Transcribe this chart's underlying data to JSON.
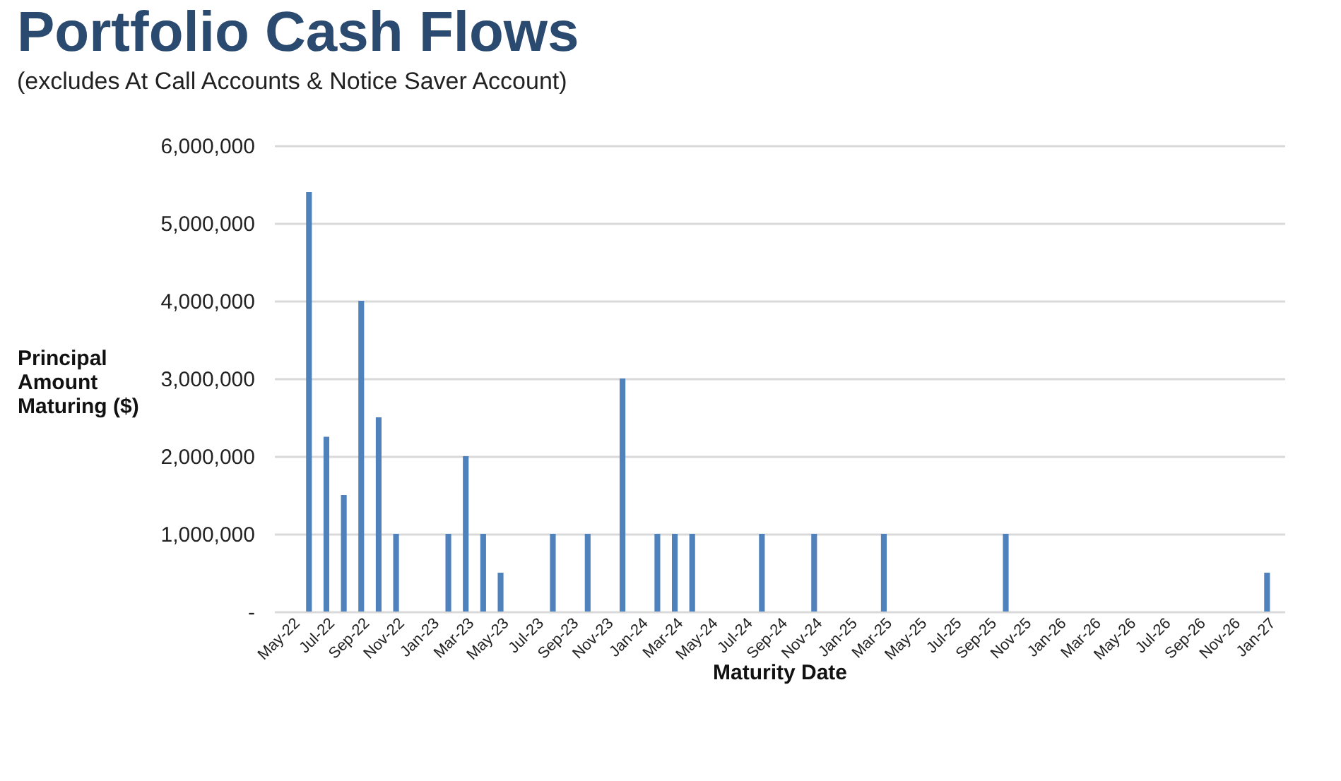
{
  "chart_data": {
    "type": "bar",
    "title": "Portfolio Cash Flows",
    "subtitle": "(excludes At Call Accounts & Notice Saver Account)",
    "xlabel": "Maturity Date",
    "ylabel": "Principal Amount Maturing ($)",
    "categories": [
      "May-22",
      null,
      "Jul-22",
      null,
      "Sep-22",
      null,
      "Nov-22",
      null,
      "Jan-23",
      null,
      "Mar-23",
      null,
      "May-23",
      null,
      "Jul-23",
      null,
      "Sep-23",
      null,
      "Nov-23",
      null,
      "Jan-24",
      null,
      "Mar-24",
      null,
      "May-24",
      null,
      "Jul-24",
      null,
      "Sep-24",
      null,
      "Nov-24",
      null,
      "Jan-25",
      null,
      "Mar-25",
      null,
      "May-25",
      null,
      "Jul-25",
      null,
      "Sep-25",
      null,
      "Nov-25",
      null,
      "Jan-26",
      null,
      "Mar-26",
      null,
      "May-26",
      null,
      "Jul-26",
      null,
      "Sep-26",
      null,
      "Nov-26",
      null,
      "Jan-27"
    ],
    "series": [
      {
        "color": "#4f81bd",
        "values": [
          null,
          5400000,
          2250000,
          1500000,
          4000000,
          2500000,
          1000000,
          null,
          null,
          1000000,
          2000000,
          1000000,
          500000,
          null,
          null,
          1000000,
          null,
          1000000,
          null,
          3000000,
          null,
          1000000,
          1000000,
          1000000,
          null,
          null,
          null,
          1000000,
          null,
          null,
          1000000,
          null,
          null,
          null,
          1000000,
          null,
          null,
          null,
          null,
          null,
          null,
          1000000,
          null,
          null,
          null,
          null,
          null,
          null,
          null,
          null,
          null,
          null,
          null,
          null,
          null,
          null,
          500000
        ]
      }
    ],
    "ylim": [
      0,
      6000000
    ],
    "yticks": [
      {
        "value": 0,
        "label": "-"
      },
      {
        "value": 1000000,
        "label": "1,000,000"
      },
      {
        "value": 2000000,
        "label": "2,000,000"
      },
      {
        "value": 3000000,
        "label": "3,000,000"
      },
      {
        "value": 4000000,
        "label": "4,000,000"
      },
      {
        "value": 5000000,
        "label": "5,000,000"
      },
      {
        "value": 6000000,
        "label": "6,000,000"
      }
    ],
    "grid": "y"
  }
}
